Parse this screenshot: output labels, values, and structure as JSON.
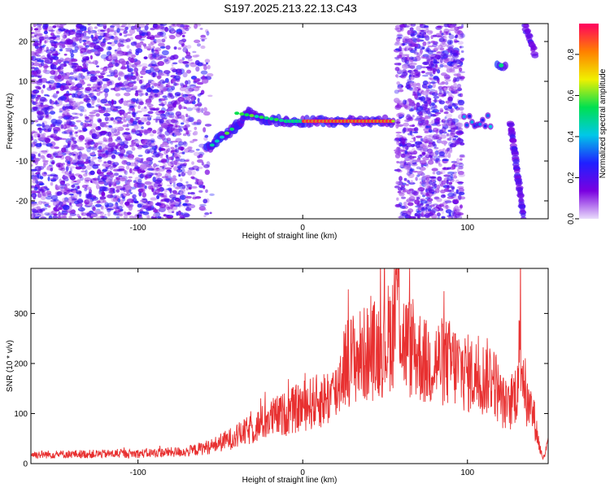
{
  "title": "S197.2025.213.22.13.C43",
  "chart_data": [
    {
      "type": "heatmap",
      "xlabel": "Height of straight line (km)",
      "ylabel": "Frequency (Hz)",
      "xlim": [
        -165,
        149
      ],
      "ylim": [
        -24.5,
        24.5
      ],
      "xticks": [
        -100,
        0,
        100
      ],
      "yticks": [
        -20,
        -10,
        0,
        10,
        20
      ],
      "colorbar": {
        "label": "Normalized spectral amplitude",
        "range": [
          0.0,
          0.95
        ],
        "ticks": [
          "0.0",
          "0.2",
          "0.4",
          "0.6",
          "0.8"
        ],
        "colors": [
          "#e9dcfb",
          "#7a00e0",
          "#2020ff",
          "#00c8e8",
          "#00e050",
          "#f0f000",
          "#ff8000",
          "#ff0060"
        ]
      },
      "features": [
        {
          "name": "noise region",
          "x_range": [
            -165,
            -55
          ],
          "amplitude": 0.15
        },
        {
          "name": "main echo",
          "points": [
            [
              -58,
              -7
            ],
            [
              -50,
              -4
            ],
            [
              -42,
              -2
            ],
            [
              -33,
              2
            ],
            [
              -25,
              0.5
            ],
            [
              -10,
              0
            ],
            [
              0,
              0
            ],
            [
              20,
              0
            ],
            [
              40,
              0
            ],
            [
              55,
              0
            ]
          ],
          "peak_amplitude": 0.9
        },
        {
          "name": "noise region",
          "x_range": [
            57,
            97
          ],
          "amplitude": 0.15
        },
        {
          "name": "echo cluster",
          "x_range": [
            98,
            115
          ],
          "frequency": 0,
          "amplitude": 0.4
        },
        {
          "name": "rising trace",
          "points": [
            [
              118,
              14
            ],
            [
              123,
              14
            ]
          ],
          "amplitude": 0.45
        },
        {
          "name": "falling trace",
          "points": [
            [
              126,
              0
            ],
            [
              134,
              -24
            ]
          ],
          "amplitude": 0.3
        },
        {
          "name": "falling trace",
          "points": [
            [
              135,
              24
            ],
            [
              141,
              17
            ]
          ],
          "amplitude": 0.3
        }
      ]
    },
    {
      "type": "line",
      "xlabel": "Height of straight line (km)",
      "ylabel": "SNR (10 * v/v)",
      "xlim": [
        -165,
        149
      ],
      "ylim": [
        0,
        390
      ],
      "xticks": [
        -100,
        0,
        100
      ],
      "yticks": [
        0,
        100,
        200,
        300
      ],
      "color": "#e83030",
      "series": [
        {
          "x": [
            -165,
            -100,
            -70,
            -55,
            -40,
            -30,
            -20,
            -10,
            0,
            10,
            20,
            25,
            30,
            40,
            45,
            50,
            55,
            58,
            60,
            65,
            70,
            75,
            80,
            90,
            100,
            105,
            110,
            115,
            120,
            125,
            130,
            132,
            136,
            140,
            144,
            146,
            149
          ],
          "y": [
            18,
            20,
            24,
            35,
            55,
            70,
            90,
            100,
            115,
            125,
            140,
            200,
            210,
            220,
            230,
            240,
            270,
            380,
            250,
            230,
            220,
            200,
            205,
            200,
            180,
            175,
            170,
            180,
            130,
            110,
            150,
            240,
            120,
            100,
            30,
            10,
            40
          ]
        }
      ]
    }
  ]
}
